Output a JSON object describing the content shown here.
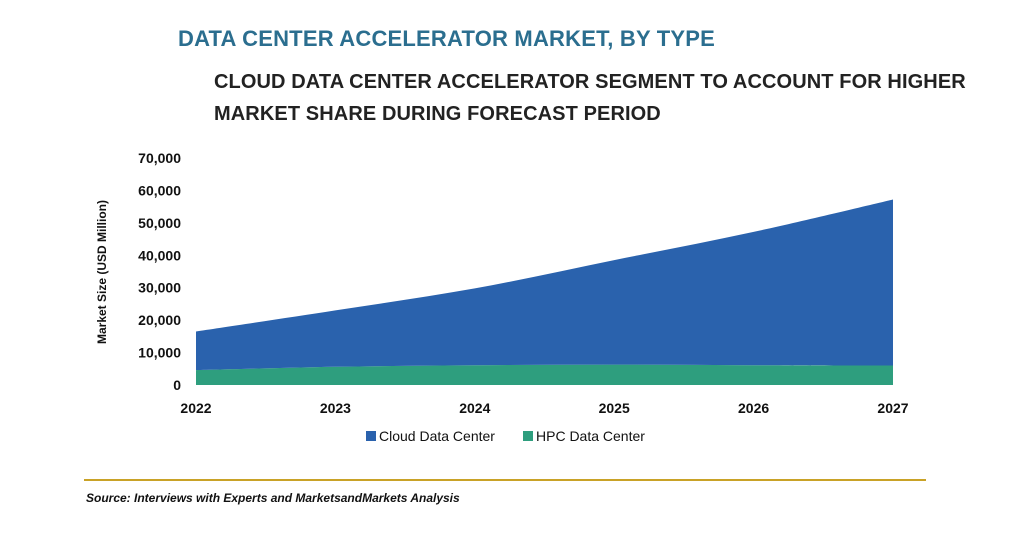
{
  "header": {
    "title": "DATA CENTER ACCELERATOR MARKET, BY TYPE",
    "subtitle_line1": "CLOUD DATA CENTER ACCELERATOR SEGMENT TO ACCOUNT FOR HIGHER",
    "subtitle_line2": "MARKET SHARE DURING FORECAST PERIOD"
  },
  "footer": {
    "source": "Source: Interviews with Experts and MarketsandMarkets Analysis"
  },
  "chart_data": {
    "type": "area",
    "stacked": true,
    "categories": [
      "2022",
      "2023",
      "2024",
      "2025",
      "2026",
      "2027"
    ],
    "x": [
      2022,
      2023,
      2024,
      2025,
      2026,
      2027
    ],
    "series": [
      {
        "name": "HPC Data Center",
        "values": [
          4600,
          5600,
          6100,
          6300,
          6100,
          6000
        ],
        "color": "#2e9e7e"
      },
      {
        "name": "Cloud Data Center",
        "values": [
          11900,
          17400,
          23700,
          32200,
          41100,
          51200
        ],
        "color": "#2a62ad"
      }
    ],
    "ylabel": "Market Size (USD Million)",
    "xlabel": "",
    "ylim": [
      0,
      70000
    ],
    "yticks": [
      0,
      10000,
      20000,
      30000,
      40000,
      50000,
      60000,
      70000
    ],
    "ytick_labels": [
      "0",
      "10,000",
      "20,000",
      "30,000",
      "40,000",
      "50,000",
      "60,000",
      "70,000"
    ],
    "grid": false,
    "legend_position": "bottom",
    "legend": [
      "Cloud Data Center",
      "HPC Data Center"
    ]
  }
}
